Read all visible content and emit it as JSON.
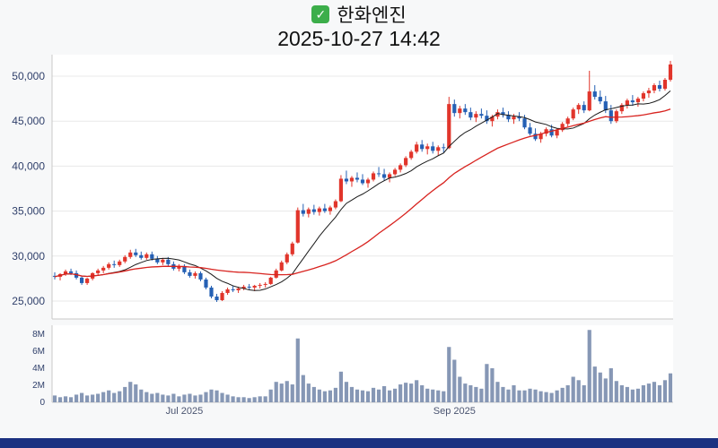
{
  "header": {
    "check_glyph": "✓",
    "stock_name": "한화엔진",
    "datetime": "2025-10-27 14:42"
  },
  "chart_data": {
    "type": "candlestick",
    "title": "한화엔진",
    "subtitle": "2025-10-27 14:42",
    "legend_position": "none",
    "grid": "horizontal",
    "price_axis": {
      "min": 24500,
      "max": 51800,
      "ticks": [
        {
          "label": "25,000",
          "value": 25000
        },
        {
          "label": "30,000",
          "value": 30000
        },
        {
          "label": "35,000",
          "value": 35000
        },
        {
          "label": "40,000",
          "value": 40000
        },
        {
          "label": "45,000",
          "value": 45000
        },
        {
          "label": "50,000",
          "value": 50000
        }
      ]
    },
    "volume_axis": {
      "unit": "millions",
      "ticks": [
        {
          "label": "0",
          "value": 0
        },
        {
          "label": "2M",
          "value": 2
        },
        {
          "label": "4M",
          "value": 4
        },
        {
          "label": "6M",
          "value": 6
        },
        {
          "label": "8M",
          "value": 8
        }
      ]
    },
    "x_axis": {
      "labels": [
        {
          "label": "Jul 2025",
          "index": 24
        },
        {
          "label": "Sep 2025",
          "index": 74
        }
      ]
    },
    "ma": {
      "fast_window": 10,
      "fast_color": "#1a1a1a",
      "slow_window": 30,
      "slow_color": "#d8231f"
    },
    "colors": {
      "up": "#e1352b",
      "down": "#2560b4",
      "volume": "#8697b5",
      "grid": "#e8e8e8",
      "axis": "#c8c8c8",
      "tick_text": "#30406b",
      "xlabel_text": "#4a5470",
      "plot_bg": "#ffffff"
    },
    "candles_format": [
      "open",
      "high",
      "low",
      "close",
      "volume_millions"
    ],
    "candles": [
      [
        27800,
        28200,
        27400,
        27700,
        0.8
      ],
      [
        27700,
        28100,
        27300,
        28000,
        0.6
      ],
      [
        28000,
        28500,
        27800,
        28300,
        0.7
      ],
      [
        28300,
        28600,
        27900,
        28100,
        0.6
      ],
      [
        28100,
        28400,
        27400,
        27600,
        0.9
      ],
      [
        27600,
        27800,
        26800,
        27000,
        1.1
      ],
      [
        27000,
        27600,
        26800,
        27500,
        0.8
      ],
      [
        27500,
        28200,
        27300,
        28100,
        0.9
      ],
      [
        28100,
        28600,
        27900,
        28400,
        1.0
      ],
      [
        28400,
        28900,
        28100,
        28700,
        1.2
      ],
      [
        28700,
        29300,
        28500,
        29100,
        1.4
      ],
      [
        29100,
        29500,
        28700,
        29000,
        1.1
      ],
      [
        29000,
        29600,
        28800,
        29400,
        1.3
      ],
      [
        29400,
        30100,
        29200,
        29900,
        1.8
      ],
      [
        29900,
        30700,
        29700,
        30400,
        2.4
      ],
      [
        30400,
        30800,
        29900,
        30100,
        2.1
      ],
      [
        30100,
        30500,
        29600,
        29800,
        1.5
      ],
      [
        29800,
        30400,
        29600,
        30200,
        1.2
      ],
      [
        30200,
        30500,
        29500,
        29700,
        1.0
      ],
      [
        29700,
        30000,
        29100,
        29300,
        1.1
      ],
      [
        29300,
        29800,
        29000,
        29600,
        0.9
      ],
      [
        29600,
        29900,
        28900,
        29100,
        0.8
      ],
      [
        29100,
        29400,
        28400,
        28600,
        1.0
      ],
      [
        28600,
        29100,
        28300,
        28900,
        0.7
      ],
      [
        28900,
        29100,
        28000,
        28200,
        0.9
      ],
      [
        28200,
        28500,
        27600,
        27800,
        1.0
      ],
      [
        27800,
        28300,
        27500,
        28100,
        0.8
      ],
      [
        28100,
        28300,
        27200,
        27400,
        0.9
      ],
      [
        27400,
        27600,
        26300,
        26500,
        1.2
      ],
      [
        26500,
        26700,
        25300,
        25500,
        1.5
      ],
      [
        25500,
        25800,
        24900,
        25100,
        1.4
      ],
      [
        25100,
        26100,
        25000,
        25900,
        1.1
      ],
      [
        25900,
        26500,
        25700,
        26300,
        0.9
      ],
      [
        26300,
        26700,
        26000,
        26200,
        0.7
      ],
      [
        26200,
        26600,
        25900,
        26400,
        0.6
      ],
      [
        26400,
        26800,
        26200,
        26600,
        0.6
      ],
      [
        26600,
        26900,
        26300,
        26500,
        0.5
      ],
      [
        26500,
        26800,
        26100,
        26700,
        0.6
      ],
      [
        26700,
        27000,
        26400,
        26800,
        0.7
      ],
      [
        26800,
        27100,
        26500,
        26900,
        0.7
      ],
      [
        26900,
        27700,
        26800,
        27600,
        1.5
      ],
      [
        27600,
        28600,
        27500,
        28400,
        2.4
      ],
      [
        28400,
        29500,
        28300,
        29300,
        2.2
      ],
      [
        29300,
        30400,
        29100,
        30200,
        2.5
      ],
      [
        30200,
        31600,
        30000,
        31400,
        2.1
      ],
      [
        31500,
        35400,
        31400,
        35100,
        7.5
      ],
      [
        35100,
        35800,
        34400,
        34700,
        3.2
      ],
      [
        34700,
        35400,
        34300,
        35200,
        2.2
      ],
      [
        35200,
        35700,
        34600,
        34900,
        1.8
      ],
      [
        34900,
        35500,
        34500,
        35300,
        1.5
      ],
      [
        35300,
        35800,
        34800,
        35000,
        1.3
      ],
      [
        35000,
        35600,
        34600,
        35400,
        1.4
      ],
      [
        35400,
        36300,
        35200,
        36100,
        1.7
      ],
      [
        36100,
        39000,
        36000,
        38600,
        3.6
      ],
      [
        38600,
        39500,
        38000,
        38300,
        2.4
      ],
      [
        38300,
        38900,
        37700,
        38700,
        1.8
      ],
      [
        38700,
        39300,
        38200,
        38500,
        1.5
      ],
      [
        38500,
        39100,
        37900,
        38100,
        1.4
      ],
      [
        38100,
        38700,
        37600,
        38500,
        1.3
      ],
      [
        38500,
        39400,
        38300,
        39200,
        1.7
      ],
      [
        39200,
        39900,
        38800,
        39100,
        1.5
      ],
      [
        39100,
        39700,
        38400,
        38700,
        1.9
      ],
      [
        38700,
        39300,
        38200,
        39100,
        1.4
      ],
      [
        39100,
        39800,
        38900,
        39600,
        1.6
      ],
      [
        39600,
        40300,
        39300,
        40100,
        2.1
      ],
      [
        40100,
        41100,
        39900,
        40900,
        2.3
      ],
      [
        40900,
        41800,
        40700,
        41600,
        2.2
      ],
      [
        41600,
        42700,
        41400,
        42400,
        2.6
      ],
      [
        42400,
        42900,
        41600,
        41900,
        2.0
      ],
      [
        41900,
        42500,
        41300,
        42200,
        1.6
      ],
      [
        42200,
        42700,
        41400,
        41700,
        1.5
      ],
      [
        41700,
        42300,
        41200,
        42100,
        1.4
      ],
      [
        42100,
        42500,
        41500,
        42000,
        1.3
      ],
      [
        42000,
        47700,
        41900,
        46900,
        6.5
      ],
      [
        46900,
        47400,
        45500,
        45900,
        5.0
      ],
      [
        45900,
        46700,
        45300,
        46400,
        3.0
      ],
      [
        46400,
        46900,
        45700,
        46000,
        2.2
      ],
      [
        46000,
        46500,
        45100,
        45400,
        2.0
      ],
      [
        45400,
        46100,
        44900,
        45800,
        1.8
      ],
      [
        45800,
        46400,
        45300,
        45600,
        1.6
      ],
      [
        45600,
        46200,
        44700,
        45000,
        4.5
      ],
      [
        45000,
        45700,
        44400,
        45500,
        4.0
      ],
      [
        45500,
        46300,
        45200,
        46000,
        2.4
      ],
      [
        46000,
        46500,
        45400,
        45700,
        1.8
      ],
      [
        45700,
        46100,
        44900,
        45200,
        1.5
      ],
      [
        45200,
        45800,
        44700,
        45500,
        2.0
      ],
      [
        45500,
        46000,
        45000,
        45300,
        1.4
      ],
      [
        45300,
        45700,
        44100,
        44300,
        1.4
      ],
      [
        44300,
        44800,
        43400,
        43600,
        1.6
      ],
      [
        43600,
        44200,
        42800,
        43000,
        1.5
      ],
      [
        43000,
        43800,
        42600,
        43600,
        1.3
      ],
      [
        43600,
        44300,
        43300,
        44100,
        1.2
      ],
      [
        44100,
        44600,
        43200,
        43400,
        1.1
      ],
      [
        43400,
        44200,
        43100,
        44000,
        1.4
      ],
      [
        44000,
        44900,
        43800,
        44700,
        1.7
      ],
      [
        44700,
        45500,
        44400,
        45300,
        2.0
      ],
      [
        45300,
        46500,
        45100,
        46300,
        3.0
      ],
      [
        46300,
        47000,
        45800,
        46800,
        2.6
      ],
      [
        46800,
        47200,
        45900,
        46200,
        2.0
      ],
      [
        46200,
        50600,
        46100,
        48300,
        8.5
      ],
      [
        48300,
        49000,
        47400,
        47700,
        4.2
      ],
      [
        47700,
        48400,
        46900,
        47200,
        3.5
      ],
      [
        47200,
        47800,
        45900,
        46200,
        2.8
      ],
      [
        46200,
        46800,
        44700,
        45000,
        4.0
      ],
      [
        45000,
        46300,
        44800,
        46100,
        2.5
      ],
      [
        46100,
        47000,
        45800,
        46800,
        2.0
      ],
      [
        46800,
        47500,
        46400,
        47300,
        1.8
      ],
      [
        47300,
        47900,
        46700,
        47100,
        1.5
      ],
      [
        47100,
        47700,
        46600,
        47500,
        1.6
      ],
      [
        47500,
        48300,
        47200,
        48100,
        2.0
      ],
      [
        48100,
        48700,
        47600,
        48400,
        2.2
      ],
      [
        48400,
        49200,
        48100,
        49000,
        2.4
      ],
      [
        49000,
        49500,
        48300,
        48600,
        2.0
      ],
      [
        48600,
        49800,
        48400,
        49600,
        2.6
      ],
      [
        49600,
        51700,
        49400,
        51300,
        3.4
      ]
    ]
  }
}
